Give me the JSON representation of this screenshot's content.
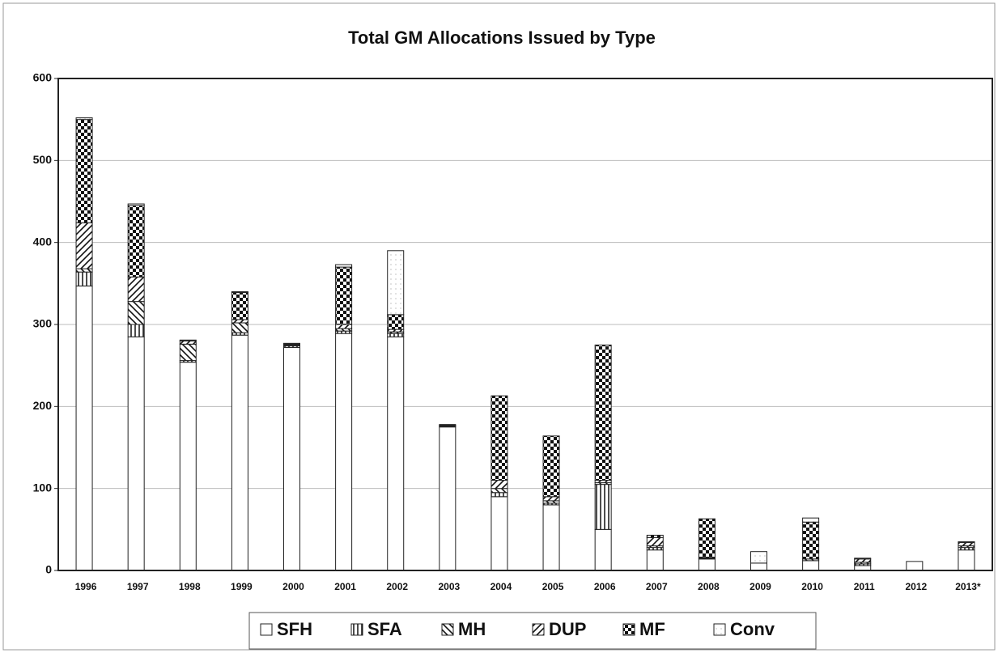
{
  "chart_data": {
    "type": "stacked-bar",
    "title": "Total GM Allocations Issued by Type",
    "categories": [
      "1996",
      "1997",
      "1998",
      "1999",
      "2000",
      "2001",
      "2002",
      "2003",
      "2004",
      "2005",
      "2006",
      "2007",
      "2008",
      "2009",
      "2010",
      "2011",
      "2012",
      "2013*"
    ],
    "series": [
      {
        "name": "SFH",
        "color": "#ffffff",
        "pattern": "solid",
        "values": [
          347,
          285,
          254,
          287,
          272,
          289,
          285,
          175,
          90,
          80,
          50,
          25,
          14,
          9,
          12,
          6,
          11,
          25
        ]
      },
      {
        "name": "SFA",
        "color": "#ffffff",
        "pattern": "vertical",
        "values": [
          17,
          15,
          2,
          3,
          2,
          3,
          4,
          1,
          5,
          2,
          55,
          3,
          0,
          0,
          0,
          2,
          0,
          3
        ]
      },
      {
        "name": "MH",
        "color": "#ffffff",
        "pattern": "back-diagonal",
        "values": [
          4,
          28,
          20,
          12,
          1,
          3,
          2,
          1,
          5,
          3,
          2,
          2,
          1,
          0,
          2,
          2,
          0,
          2
        ]
      },
      {
        "name": "DUP",
        "color": "#ffffff",
        "pattern": "diagonal",
        "values": [
          56,
          30,
          4,
          4,
          1,
          5,
          3,
          1,
          10,
          5,
          3,
          10,
          1,
          0,
          0,
          4,
          0,
          4
        ]
      },
      {
        "name": "MF",
        "color": "#ffffff",
        "pattern": "checker",
        "values": [
          126,
          87,
          0,
          33,
          0,
          70,
          18,
          0,
          103,
          74,
          165,
          3,
          47,
          0,
          45,
          0,
          0,
          0
        ]
      },
      {
        "name": "Conv",
        "color": "#ffffff",
        "pattern": "dotted",
        "values": [
          2,
          2,
          1,
          1,
          1,
          3,
          78,
          0,
          0,
          0,
          0,
          0,
          0,
          14,
          5,
          1,
          0,
          1
        ]
      }
    ],
    "ylim": [
      0,
      600
    ],
    "yticks": [
      0,
      100,
      200,
      300,
      400,
      500,
      600
    ],
    "grid": true
  }
}
